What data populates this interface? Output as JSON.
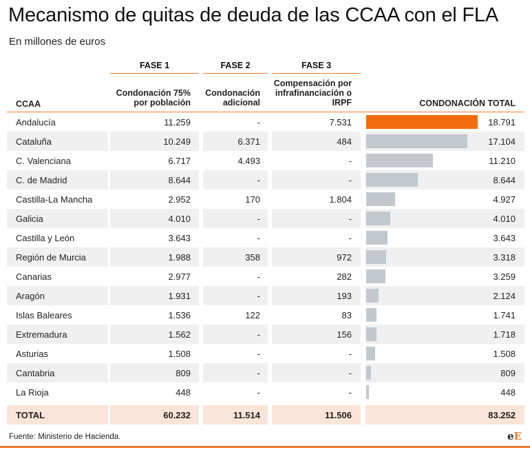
{
  "title": "Mecanismo de quitas de deuda de las CCAA con el FLA",
  "subtitle": "En millones de euros",
  "phases": [
    "FASE 1",
    "FASE 2",
    "FASE 3"
  ],
  "columns": {
    "ccaa": "CCAA",
    "fase1": "Condonación 75% por población",
    "fase2": "Condonación adicional",
    "fase3": "Compensación por infrafinanciación o IRPF",
    "total": "CONDONACIÓN TOTAL"
  },
  "source": "Fuente: Ministerio de Hacienda.",
  "logo": {
    "part1": "e",
    "part2": "E"
  },
  "colors": {
    "accent": "#f07a2c",
    "highlight_bar": "#f26c0d",
    "bar": "#c3c8cf",
    "shade": "#f0f0f0",
    "total_row": "#fbe4d8"
  },
  "chart_data": {
    "type": "table",
    "title": "Mecanismo de quitas de deuda de las CCAA con el FLA",
    "subtitle": "En millones de euros",
    "highlight": "Andalucía",
    "rows": [
      {
        "ccaa": "Andalucía",
        "f1": "11.259",
        "f2": "-",
        "f3": "7.531",
        "total": "18.791",
        "value": 18791
      },
      {
        "ccaa": "Cataluña",
        "f1": "10.249",
        "f2": "6.371",
        "f3": "484",
        "total": "17.104",
        "value": 17104
      },
      {
        "ccaa": "C. Valenciana",
        "f1": "6.717",
        "f2": "4.493",
        "f3": "-",
        "total": "11.210",
        "value": 11210
      },
      {
        "ccaa": "C. de Madrid",
        "f1": "8.644",
        "f2": "-",
        "f3": "-",
        "total": "8.644",
        "value": 8644
      },
      {
        "ccaa": "Castilla-La Mancha",
        "f1": "2.952",
        "f2": "170",
        "f3": "1.804",
        "total": "4.927",
        "value": 4927
      },
      {
        "ccaa": "Galicia",
        "f1": "4.010",
        "f2": "-",
        "f3": "-",
        "total": "4.010",
        "value": 4010
      },
      {
        "ccaa": "Castilla y León",
        "f1": "3.643",
        "f2": "-",
        "f3": "-",
        "total": "3.643",
        "value": 3643
      },
      {
        "ccaa": "Región de Murcia",
        "f1": "1.988",
        "f2": "358",
        "f3": "972",
        "total": "3.318",
        "value": 3318
      },
      {
        "ccaa": "Canarias",
        "f1": "2.977",
        "f2": "-",
        "f3": "282",
        "total": "3.259",
        "value": 3259
      },
      {
        "ccaa": "Aragón",
        "f1": "1.931",
        "f2": "-",
        "f3": "193",
        "total": "2.124",
        "value": 2124
      },
      {
        "ccaa": "Islas Baleares",
        "f1": "1.536",
        "f2": "122",
        "f3": "83",
        "total": "1.741",
        "value": 1741
      },
      {
        "ccaa": "Extremadura",
        "f1": "1.562",
        "f2": "-",
        "f3": "156",
        "total": "1.718",
        "value": 1718
      },
      {
        "ccaa": "Asturias",
        "f1": "1.508",
        "f2": "-",
        "f3": "-",
        "total": "1.508",
        "value": 1508
      },
      {
        "ccaa": "Cantabria",
        "f1": "809",
        "f2": "-",
        "f3": "-",
        "total": "809",
        "value": 809
      },
      {
        "ccaa": "La Rioja",
        "f1": "448",
        "f2": "-",
        "f3": "-",
        "total": "448",
        "value": 448
      }
    ],
    "total_row": {
      "ccaa": "TOTAL",
      "f1": "60.232",
      "f2": "11.514",
      "f3": "11.506",
      "total": "83.252"
    }
  }
}
